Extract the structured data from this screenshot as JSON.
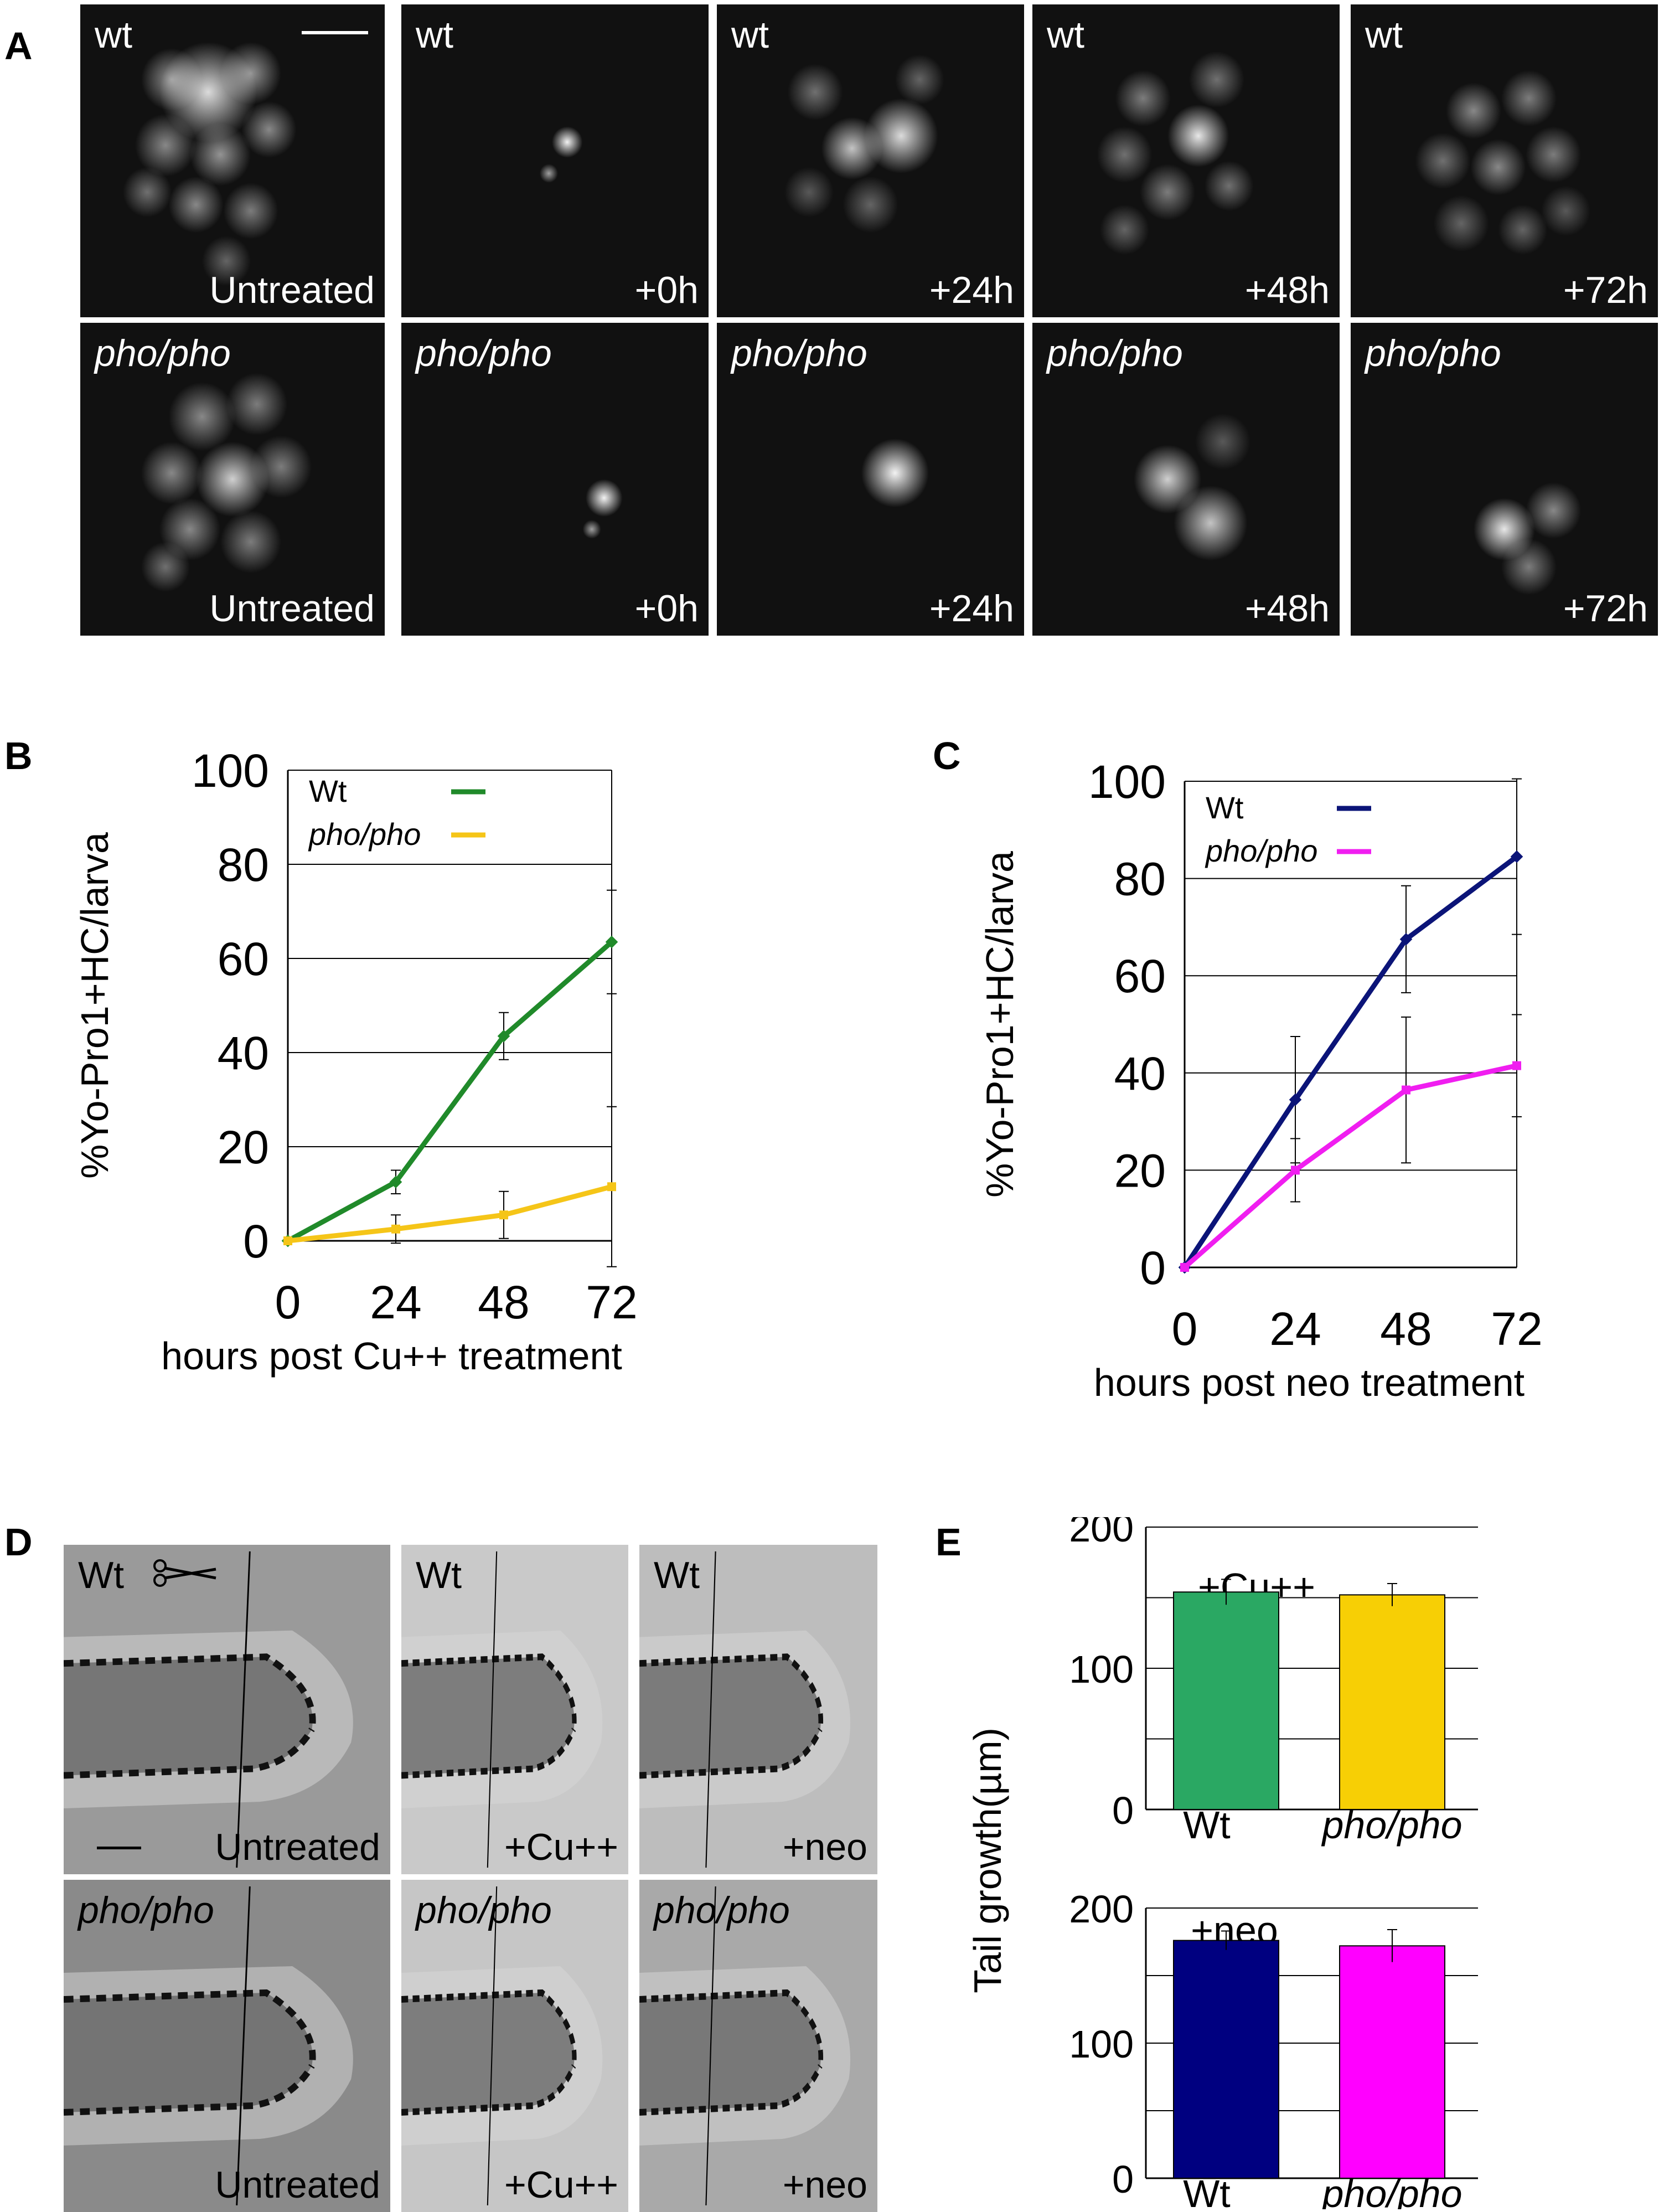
{
  "panels": {
    "a": {
      "label": "A",
      "rows": [
        {
          "genotype": "wt",
          "italic": false,
          "conditions": [
            "Untreated",
            "+0h",
            "+24h",
            "+48h",
            "+72h"
          ]
        },
        {
          "genotype": "pho/pho",
          "italic": true,
          "conditions": [
            "Untreated",
            "+0h",
            "+24h",
            "+48h",
            "+72h"
          ]
        }
      ]
    },
    "b": {
      "label": "B"
    },
    "c": {
      "label": "C"
    },
    "d": {
      "label": "D",
      "rows": [
        {
          "genotype": "Wt",
          "italic": false,
          "conditions": [
            "Untreated",
            "+Cu++",
            "+neo"
          ]
        },
        {
          "genotype": "pho/pho",
          "italic": true,
          "conditions": [
            "Untreated",
            "+Cu++",
            "+neo"
          ]
        }
      ]
    },
    "e": {
      "label": "E",
      "ylabel": "Tail growth(µm)"
    }
  },
  "chart_data": [
    {
      "id": "B",
      "type": "line",
      "xlabel": "hours post Cu++ treatment",
      "ylabel": "%Yo-Pro1+HC/larva",
      "x": [
        0,
        24,
        48,
        72
      ],
      "xticks": [
        "0",
        "24",
        "48",
        "72"
      ],
      "yticks": [
        "0",
        "20",
        "40",
        "60",
        "80",
        "100"
      ],
      "ylim": [
        0,
        100
      ],
      "grid": true,
      "legend": "top-left",
      "series": [
        {
          "name": "Wt",
          "italic": false,
          "color": "#208a2a",
          "values": [
            0,
            12.5,
            43.5,
            63.5
          ],
          "error": [
            0,
            2.5,
            5,
            11
          ]
        },
        {
          "name": "pho/pho",
          "italic": true,
          "color": "#f5c518",
          "values": [
            0,
            2.5,
            5.5,
            11.5
          ],
          "error": [
            0,
            3,
            5,
            17
          ]
        }
      ]
    },
    {
      "id": "C",
      "type": "line",
      "xlabel": "hours post neo treatment",
      "ylabel": "%Yo-Pro1+HC/larva",
      "x": [
        0,
        24,
        48,
        72
      ],
      "xticks": [
        "0",
        "24",
        "48",
        "72"
      ],
      "yticks": [
        "0",
        "20",
        "40",
        "60",
        "80",
        "100"
      ],
      "ylim": [
        0,
        100
      ],
      "grid": true,
      "legend": "top-left",
      "series": [
        {
          "name": "Wt",
          "italic": false,
          "color": "#0b1478",
          "values": [
            0,
            34.5,
            67.5,
            84.5
          ],
          "error": [
            0,
            13,
            11,
            16
          ]
        },
        {
          "name": "pho/pho",
          "italic": true,
          "color": "#f01ef0",
          "values": [
            0,
            20,
            36.5,
            41.5
          ],
          "error": [
            0,
            6.5,
            15,
            10.5
          ]
        }
      ]
    },
    {
      "id": "E-top",
      "type": "bar",
      "title": "+Cu++",
      "categories": [
        "Wt",
        "pho/pho"
      ],
      "values": [
        154,
        152
      ],
      "error": [
        9,
        8
      ],
      "colors": [
        "#2aa863",
        "#f7cf05"
      ],
      "yticks": [
        "0",
        "100",
        "200"
      ],
      "ylim": [
        0,
        200
      ],
      "grid": true
    },
    {
      "id": "E-bottom",
      "type": "bar",
      "title": "+neo",
      "categories": [
        "Wt",
        "pho/pho"
      ],
      "values": [
        176,
        172
      ],
      "error": [
        7,
        12
      ],
      "colors": [
        "#000080",
        "#ff00ff"
      ],
      "yticks": [
        "0",
        "100",
        "200"
      ],
      "ylim": [
        0,
        200
      ],
      "grid": true
    }
  ]
}
